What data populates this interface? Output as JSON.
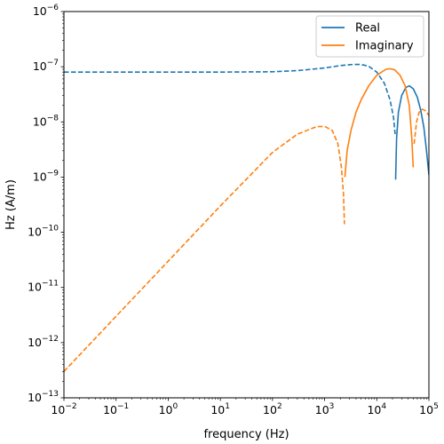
{
  "chart_data": {
    "type": "line",
    "title": "",
    "xlabel": "frequency (Hz)",
    "ylabel": "Hz (A/m)",
    "xscale": "log",
    "yscale": "log",
    "xlim": [
      0.01,
      100000
    ],
    "ylim": [
      1e-13,
      1e-06
    ],
    "x_ticks": [
      {
        "value": 0.01,
        "base": "10",
        "exp": "−2"
      },
      {
        "value": 0.1,
        "base": "10",
        "exp": "−1"
      },
      {
        "value": 1,
        "base": "10",
        "exp": "0"
      },
      {
        "value": 10,
        "base": "10",
        "exp": "1"
      },
      {
        "value": 100,
        "base": "10",
        "exp": "2"
      },
      {
        "value": 1000,
        "base": "10",
        "exp": "3"
      },
      {
        "value": 10000,
        "base": "10",
        "exp": "4"
      },
      {
        "value": 100000,
        "base": "10",
        "exp": "5"
      }
    ],
    "y_ticks": [
      {
        "value": 1e-13,
        "base": "10",
        "exp": "−13"
      },
      {
        "value": 1e-12,
        "base": "10",
        "exp": "−12"
      },
      {
        "value": 1e-11,
        "base": "10",
        "exp": "−11"
      },
      {
        "value": 1e-10,
        "base": "10",
        "exp": "−10"
      },
      {
        "value": 1e-09,
        "base": "10",
        "exp": "−9"
      },
      {
        "value": 1e-08,
        "base": "10",
        "exp": "−8"
      },
      {
        "value": 1e-07,
        "base": "10",
        "exp": "−7"
      },
      {
        "value": 1e-06,
        "base": "10",
        "exp": "−6"
      }
    ],
    "grid": false,
    "legend_position": "top-right",
    "series": [
      {
        "name": "Real",
        "color": "#1f77b4",
        "segments": [
          {
            "style": "dashed",
            "points": [
              [
                0.01,
                8e-08
              ],
              [
                1,
                8e-08
              ],
              [
                10,
                8e-08
              ],
              [
                100,
                8.1e-08
              ],
              [
                300,
                8.5e-08
              ],
              [
                1000,
                9.5e-08
              ],
              [
                2000,
                1.05e-07
              ],
              [
                3500,
                1.1e-07
              ],
              [
                5000,
                1.1e-07
              ],
              [
                7000,
                1.02e-07
              ],
              [
                10000,
                8e-08
              ],
              [
                14000,
                5e-08
              ],
              [
                18000,
                2.5e-08
              ],
              [
                21000,
                1.2e-08
              ],
              [
                22500,
                6e-09
              ]
            ]
          },
          {
            "style": "solid",
            "points": [
              [
                23000,
                9e-10
              ],
              [
                24000,
                5e-09
              ],
              [
                26000,
                1.5e-08
              ],
              [
                30000,
                3e-08
              ],
              [
                36000,
                4.2e-08
              ],
              [
                42000,
                4.5e-08
              ],
              [
                50000,
                4e-08
              ],
              [
                60000,
                2.8e-08
              ],
              [
                70000,
                1.6e-08
              ],
              [
                80000,
                8e-09
              ],
              [
                90000,
                3e-09
              ],
              [
                100000,
                1.1e-09
              ]
            ]
          }
        ]
      },
      {
        "name": "Imaginary",
        "color": "#ff7f0e",
        "segments": [
          {
            "style": "dashed",
            "points": [
              [
                0.01,
                3e-13
              ],
              [
                0.1,
                3e-12
              ],
              [
                1,
                3e-11
              ],
              [
                10,
                3e-10
              ],
              [
                100,
                2.8e-09
              ],
              [
                300,
                6e-09
              ],
              [
                700,
                8.2e-09
              ],
              [
                1000,
                8.3e-09
              ],
              [
                1400,
                7e-09
              ],
              [
                1800,
                4e-09
              ],
              [
                2100,
                1.5e-09
              ],
              [
                2300,
                5e-10
              ],
              [
                2400,
                1.4e-10
              ]
            ]
          },
          {
            "style": "solid",
            "points": [
              [
                2450,
                1e-09
              ],
              [
                2700,
                3e-09
              ],
              [
                3200,
                7e-09
              ],
              [
                4000,
                1.5e-08
              ],
              [
                5000,
                2.5e-08
              ],
              [
                7000,
                4.5e-08
              ],
              [
                10000,
                7e-08
              ],
              [
                15000,
                9e-08
              ],
              [
                18000,
                9.2e-08
              ],
              [
                22000,
                8.8e-08
              ],
              [
                28000,
                7e-08
              ],
              [
                35000,
                4.5e-08
              ],
              [
                42000,
                2e-08
              ],
              [
                47000,
                5e-09
              ],
              [
                50000,
                1.5e-09
              ]
            ]
          },
          {
            "style": "dashed",
            "points": [
              [
                52000,
                4e-09
              ],
              [
                58000,
                1e-08
              ],
              [
                65000,
                1.5e-08
              ],
              [
                75000,
                1.7e-08
              ],
              [
                85000,
                1.6e-08
              ],
              [
                95000,
                1.4e-08
              ],
              [
                100000,
                1.3e-08
              ]
            ]
          }
        ]
      }
    ]
  }
}
